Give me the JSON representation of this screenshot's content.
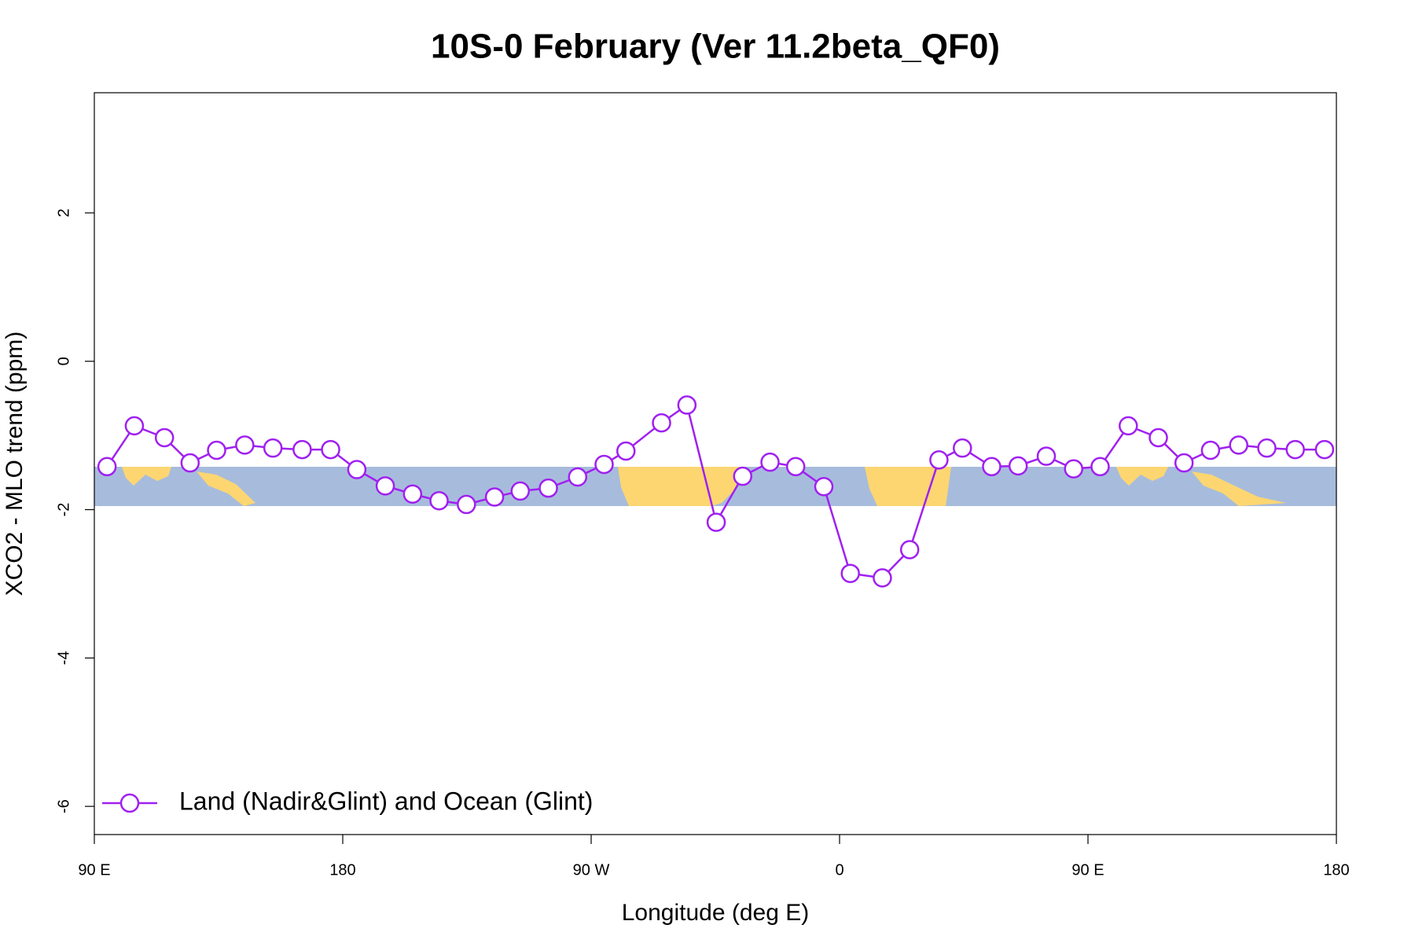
{
  "chart_data": {
    "type": "line",
    "title": "10S-0 February (Ver 11.2beta_QF0)",
    "x_label": "Longitude (deg E)",
    "y_label": "XCO2 - MLO trend (ppm)",
    "xlim": [
      90,
      540
    ],
    "ylim": [
      -6.38,
      3.62
    ],
    "xticks": [
      {
        "value": 90,
        "label": "90 E"
      },
      180,
      {
        "value": 270,
        "label": "90 W"
      },
      {
        "value": 360,
        "label": "0"
      },
      {
        "value": 450,
        "label": "90 E"
      },
      {
        "value": 540,
        "label": "180"
      }
    ],
    "yticks": [
      -6,
      -4,
      -2,
      0,
      2
    ],
    "legend": "bottom left",
    "series": [
      {
        "name": "Land (Nadir&Glint) and Ocean (Glint)",
        "color": "#a020f0",
        "x": [
          94.6,
          104.5,
          115.4,
          124.7,
          134.3,
          144.5,
          154.7,
          165.3,
          175.6,
          185.1,
          195.4,
          205.3,
          214.9,
          224.8,
          235.0,
          244.3,
          254.5,
          265.1,
          274.7,
          282.6,
          295.5,
          304.7,
          315.3,
          324.9,
          334.8,
          344.1,
          354.3,
          363.9,
          375.5,
          385.4,
          396.0,
          404.5,
          415.1,
          424.7,
          434.9,
          444.8,
          454.4,
          464.6,
          475.5,
          484.8,
          494.4,
          504.6,
          514.8,
          525.1,
          535.7
        ],
        "values": [
          -1.42,
          -0.87,
          -1.03,
          -1.37,
          -1.2,
          -1.13,
          -1.17,
          -1.19,
          -1.19,
          -1.46,
          -1.68,
          -1.79,
          -1.88,
          -1.93,
          -1.83,
          -1.75,
          -1.71,
          -1.56,
          -1.39,
          -1.21,
          -0.83,
          -0.59,
          -2.17,
          -1.55,
          -1.36,
          -1.42,
          -1.69,
          -2.86,
          -2.92,
          -2.54,
          -1.33,
          -1.17,
          -1.42,
          -1.41,
          -1.28,
          -1.45,
          -1.42,
          -0.87,
          -1.03,
          -1.37,
          -1.2,
          -1.13,
          -1.17,
          -1.19,
          -1.19
        ]
      }
    ]
  }
}
